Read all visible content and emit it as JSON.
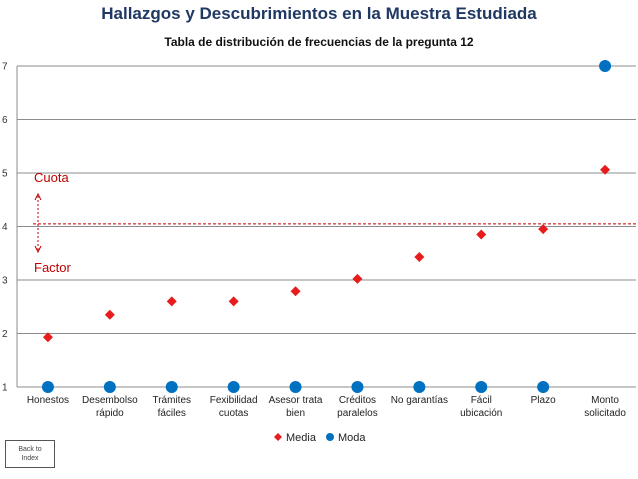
{
  "chart_data": {
    "type": "scatter",
    "title": "Hallazgos y Descubrimientos en la Muestra Estudiada",
    "subtitle": "Tabla de distribución de frecuencias de la pregunta 12",
    "categories": [
      [
        "Honestos"
      ],
      [
        "Desembolso",
        "rápido"
      ],
      [
        "Trámites",
        "fáciles"
      ],
      [
        "Fexibilidad",
        "cuotas"
      ],
      [
        "Asesor trata",
        "bien"
      ],
      [
        "Créditos",
        "paralelos"
      ],
      [
        "No garantías"
      ],
      [
        "Fácil",
        "ubicación"
      ],
      [
        "Plazo"
      ],
      [
        "Monto",
        "solicitado"
      ]
    ],
    "series": [
      {
        "name": "Media",
        "marker": "diamond",
        "color": "#e81c1c",
        "values": [
          1.93,
          2.35,
          2.6,
          2.6,
          2.79,
          3.02,
          3.43,
          3.85,
          3.95,
          5.06
        ]
      },
      {
        "name": "Moda",
        "marker": "circle",
        "color": "#0070c0",
        "values": [
          1,
          1,
          1,
          1,
          1,
          1,
          1,
          1,
          1,
          7
        ]
      }
    ],
    "ylim": [
      1,
      7
    ],
    "yticks": [
      "1",
      "2",
      "3",
      "4",
      "5",
      "6",
      "7"
    ],
    "grid": true,
    "legend_position": "bottom",
    "reference_line": {
      "y": 4.05,
      "color": "#c00000"
    },
    "annotations": {
      "top": "Cuota",
      "bottom": "Factor"
    }
  },
  "back_button": {
    "line1": "Back to",
    "line2": "Index"
  }
}
